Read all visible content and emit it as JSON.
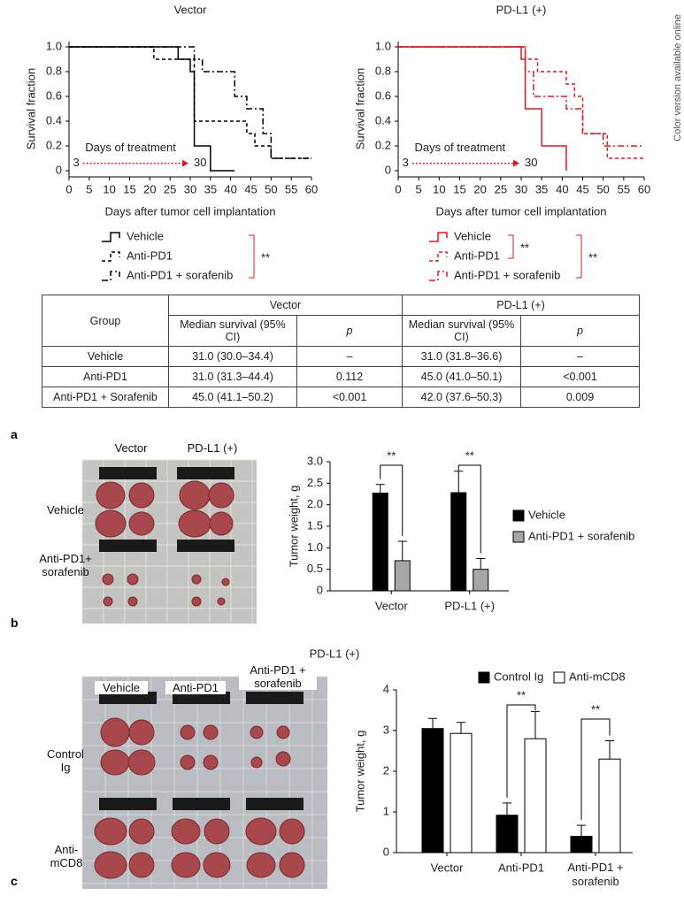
{
  "side_note": "Color version available online",
  "panel_labels": [
    "a",
    "b",
    "c"
  ],
  "chart_data": [
    {
      "type": "step",
      "title": "Vector",
      "x_label": "Days after tumor cell implantation",
      "y_label": "Survival fraction",
      "xlim": [
        0,
        60
      ],
      "xticks": [
        0,
        5,
        10,
        15,
        20,
        25,
        30,
        35,
        40,
        45,
        50,
        55,
        60
      ],
      "ylim": [
        0,
        1
      ],
      "yticks": [
        0,
        0.2,
        0.4,
        0.6,
        0.8,
        {
          "value": 1,
          "label": "1.0"
        }
      ],
      "annotation": "Days of treatment",
      "treatment_start": 3,
      "treatment_end": 30,
      "annotation_color": "#e8141c",
      "brackets": [
        "**"
      ],
      "series": [
        {
          "name": "Vehicle",
          "color": "#000000",
          "style": "solid",
          "x": [
            0,
            27,
            30,
            31,
            35,
            41
          ],
          "values": [
            1,
            0.9,
            0.8,
            0.2,
            0,
            0
          ]
        },
        {
          "name": "Anti-PD1",
          "color": "#000000",
          "style": "dashed",
          "x": [
            0,
            21,
            31,
            44,
            46,
            50,
            60
          ],
          "values": [
            1,
            0.9,
            0.4,
            0.3,
            0.2,
            0.1,
            0.1
          ]
        },
        {
          "name": "Anti-PD1 + sorafenib",
          "color": "#000000",
          "style": "dashdot",
          "x": [
            0,
            31,
            33,
            41,
            44,
            48,
            50,
            60
          ],
          "values": [
            1,
            0.9,
            0.8,
            0.6,
            0.5,
            0.3,
            0.1,
            0.1
          ]
        }
      ]
    },
    {
      "type": "step",
      "title": "PD-L1 (+)",
      "x_label": "Days after tumor cell implantation",
      "y_label": "Survival fraction",
      "xlim": [
        0,
        60
      ],
      "xticks": [
        0,
        5,
        10,
        15,
        20,
        25,
        30,
        35,
        40,
        45,
        50,
        55,
        60
      ],
      "ylim": [
        0,
        1
      ],
      "yticks": [
        0,
        0.2,
        0.4,
        0.6,
        0.8,
        {
          "value": 1,
          "label": "1.0"
        }
      ],
      "annotation": "Days of treatment",
      "treatment_start": 3,
      "treatment_end": 30,
      "annotation_color": "#e8141c",
      "brackets": [
        "**",
        "**"
      ],
      "series": [
        {
          "name": "Vehicle",
          "color": "#e8141c",
          "style": "solid",
          "x": [
            0,
            30,
            31,
            35,
            41,
            41
          ],
          "values": [
            1,
            0.9,
            0.5,
            0.2,
            0,
            0
          ]
        },
        {
          "name": "Anti-PD1",
          "color": "#e8141c",
          "style": "dashed",
          "x": [
            0,
            31,
            34,
            41,
            43,
            45,
            51,
            60
          ],
          "values": [
            1,
            0.9,
            0.8,
            0.7,
            0.6,
            0.3,
            0.1,
            0.1
          ]
        },
        {
          "name": "Anti-PD1 + sorafenib",
          "color": "#e8141c",
          "style": "dashdot",
          "x": [
            0,
            31,
            33,
            41,
            45,
            50,
            60
          ],
          "values": [
            1,
            0.8,
            0.6,
            0.5,
            0.3,
            0.2,
            0.2
          ]
        }
      ]
    },
    {
      "type": "bar",
      "y_label": "Tumor weight, g",
      "categories": [
        "Vector",
        "PD-L1 (+)"
      ],
      "ylim": [
        0,
        3
      ],
      "yticks": [
        0,
        0.5,
        {
          "value": 1,
          "label": "1.0"
        },
        1.5,
        {
          "value": 2,
          "label": "2.0"
        },
        2.5,
        {
          "value": 3,
          "label": "3.0"
        }
      ],
      "brackets": [
        "**",
        "**"
      ],
      "series": [
        {
          "name": "Vehicle",
          "color": "#000000",
          "values": [
            2.27,
            2.28
          ],
          "errors": [
            0.2,
            0.5
          ]
        },
        {
          "name": "Anti-PD1 + sorafenib",
          "color": "#a6a6a6",
          "values": [
            0.7,
            0.5
          ],
          "errors": [
            0.45,
            0.25
          ]
        }
      ]
    },
    {
      "type": "bar",
      "title": "PD-L1 (+)",
      "y_label": "Tumor weight, g",
      "categories": [
        "Vector",
        "Anti-PD1",
        "Anti-PD1 + sorafenib"
      ],
      "ylim": [
        0,
        4
      ],
      "yticks": [
        0,
        1,
        2,
        3,
        4
      ],
      "brackets": [
        null,
        "**",
        "**"
      ],
      "series": [
        {
          "name": "Control Ig",
          "color": "#000000",
          "values": [
            3.05,
            0.92,
            0.4
          ],
          "errors": [
            0.25,
            0.3,
            0.27
          ]
        },
        {
          "name": "Anti-mCD8",
          "color": "#ffffff",
          "values": [
            2.93,
            2.8,
            2.3
          ],
          "errors": [
            0.27,
            0.67,
            0.45
          ]
        }
      ]
    }
  ],
  "table": {
    "header": [
      "Group",
      "Vector",
      "PD-L1 (+)"
    ],
    "subheader": [
      "Median survival (95% CI)",
      "p",
      "Median survival (95% CI)",
      "p"
    ],
    "rows": [
      [
        "Vehicle",
        "31.0 (30.0–34.4)",
        "–",
        "31.0 (31.8–36.6)",
        "–"
      ],
      [
        "Anti-PD1",
        "31.0 (31.3–44.4)",
        "0.112",
        "45.0 (41.0–50.1)",
        "<0.001"
      ],
      [
        "Anti-PD1 + Sorafenib",
        "45.0 (41.1–50.2)",
        "<0.001",
        "42.0 (37.6–50.3)",
        "0.009"
      ]
    ]
  },
  "photos": [
    {
      "columns": [
        "Vector",
        "PD-L1 (+)"
      ],
      "rows": [
        "Vehicle",
        "Anti-PD1+ sorafenib"
      ]
    },
    {
      "columns": [
        "Vehicle",
        "Anti-PD1",
        "Anti-PD1 + sorafenib"
      ],
      "rows": [
        "Control Ig",
        "Anti-mCD8"
      ]
    }
  ]
}
